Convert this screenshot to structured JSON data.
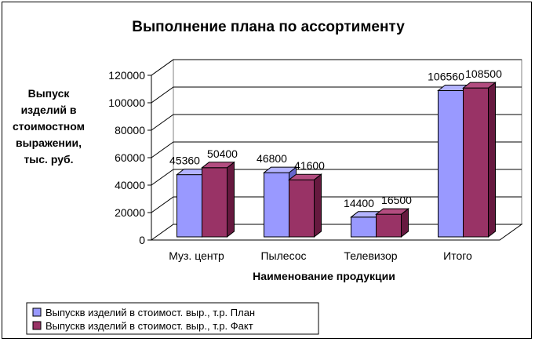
{
  "chart_data": {
    "type": "bar",
    "title": "Выполнение плана по ассортименту",
    "xlabel": "Наименование продукции",
    "ylabel_lines": [
      "Выпуск",
      "изделий в",
      "стоимостном",
      "выражении,",
      "тыс. руб."
    ],
    "categories": [
      "Муз. центр",
      "Пылесос",
      "Телевизор",
      "Итого"
    ],
    "series": [
      {
        "name": "Выпускв изделий в  стоимост. выр., т.р. План",
        "values": [
          45360,
          46800,
          14400,
          106560
        ],
        "color": "#9999ff",
        "side": "#6666cc",
        "top": "#b3b3ff"
      },
      {
        "name": "Выпускв изделий в  стоимост. выр., т.р. Факт",
        "values": [
          50400,
          41600,
          16500,
          108500
        ],
        "color": "#993366",
        "side": "#66193f",
        "top": "#b34d80"
      }
    ],
    "ylim": [
      0,
      120000
    ],
    "yticks": [
      0,
      20000,
      40000,
      60000,
      80000,
      100000,
      120000
    ],
    "grid": true,
    "legend": "bottom-left"
  }
}
